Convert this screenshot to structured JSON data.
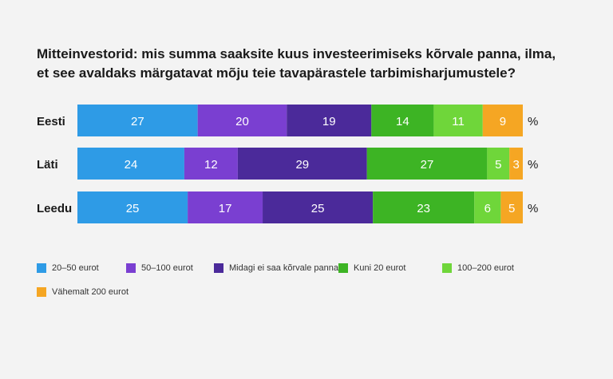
{
  "chart_data": {
    "type": "bar",
    "orientation": "horizontal",
    "stacked": true,
    "title": "Mitteinvestorid: mis summa saaksite kuus investeerimiseks kõrvale panna, ilma, et see avaldaks märgatavat mõju teie tavapärastele tarbimisharjumustele?",
    "title_lines": [
      "Mitteinvestorid: mis summa saaksite kuus investeerimiseks kõrvale panna, ilma,",
      "et see avaldaks märgatavat mõju teie tavapärastele tarbimisharjumustele?"
    ],
    "categories": [
      "Eesti",
      "Läti",
      "Leedu"
    ],
    "unit": "%",
    "legend_position": "bottom",
    "series": [
      {
        "name": "20–50 eurot",
        "color": "#2e9be6",
        "values": [
          27,
          24,
          25
        ]
      },
      {
        "name": "50–100 eurot",
        "color": "#7a3fd1",
        "values": [
          20,
          12,
          17
        ]
      },
      {
        "name": "Midagi ei saa kõrvale panna",
        "color": "#4b2a9a",
        "values": [
          19,
          29,
          25
        ]
      },
      {
        "name": "Kuni 20 eurot",
        "color": "#3db424",
        "values": [
          14,
          27,
          23
        ]
      },
      {
        "name": "100–200 eurot",
        "color": "#6fd63a",
        "values": [
          11,
          5,
          6
        ]
      },
      {
        "name": "Vähemalt 200 eurot",
        "color": "#f5a623",
        "values": [
          9,
          3,
          5
        ]
      }
    ]
  }
}
